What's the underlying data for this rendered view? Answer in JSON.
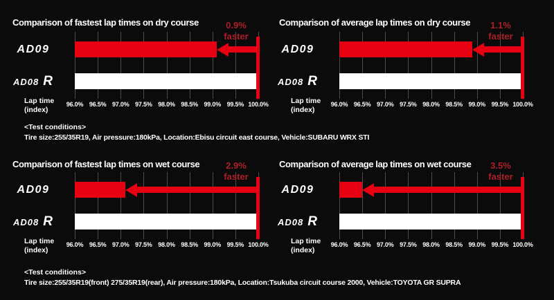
{
  "colors": {
    "background": "#0b0b0b",
    "red": "#e60012",
    "dark-red": "#ae1f27",
    "white": "#ffffff",
    "grid": "#4d4d4d"
  },
  "series": {
    "ad09": "AD09",
    "ad08": "AD08",
    "ad08_suffix": "R"
  },
  "axis_label": {
    "line1": "Lap time",
    "line2": "(index)"
  },
  "chart_data": [
    {
      "type": "bar",
      "orientation": "horizontal",
      "title": "Comparison of fastest lap times on dry course",
      "categories": [
        "AD09",
        "AD08 R"
      ],
      "values": [
        99.1,
        100.0
      ],
      "xlabel": "Lap time (index)",
      "xlim": [
        96.0,
        100.0
      ],
      "xticks": [
        "96.0%",
        "96.5%",
        "97.0%",
        "97.5%",
        "98.0%",
        "98.5%",
        "99.0%",
        "99.5%",
        "100.0%"
      ],
      "annotation": {
        "pct": "0.9%",
        "word": "faster"
      },
      "grid": true,
      "legend": false
    },
    {
      "type": "bar",
      "orientation": "horizontal",
      "title": "Comparison of average lap times on dry course",
      "categories": [
        "AD09",
        "AD08 R"
      ],
      "values": [
        98.9,
        100.0
      ],
      "xlabel": "Lap time (index)",
      "xlim": [
        96.0,
        100.0
      ],
      "xticks": [
        "96.0%",
        "96.5%",
        "97.0%",
        "97.5%",
        "98.0%",
        "98.5%",
        "99.0%",
        "99.5%",
        "100.0%"
      ],
      "annotation": {
        "pct": "1.1%",
        "word": "faster"
      },
      "grid": true,
      "legend": false
    },
    {
      "type": "bar",
      "orientation": "horizontal",
      "title": "Comparison of fastest lap times on wet course",
      "categories": [
        "AD09",
        "AD08 R"
      ],
      "values": [
        97.1,
        100.0
      ],
      "xlabel": "Lap time (index)",
      "xlim": [
        96.0,
        100.0
      ],
      "xticks": [
        "96.0%",
        "96.5%",
        "97.0%",
        "97.5%",
        "98.0%",
        "98.5%",
        "99.0%",
        "99.5%",
        "100.0%"
      ],
      "annotation": {
        "pct": "2.9%",
        "word": "faster"
      },
      "grid": true,
      "legend": false
    },
    {
      "type": "bar",
      "orientation": "horizontal",
      "title": "Comparison of average lap times on wet course",
      "categories": [
        "AD09",
        "AD08 R"
      ],
      "values": [
        96.5,
        100.0
      ],
      "xlabel": "Lap time (index)",
      "xlim": [
        96.0,
        100.0
      ],
      "xticks": [
        "96.0%",
        "96.5%",
        "97.0%",
        "97.5%",
        "98.0%",
        "98.5%",
        "99.0%",
        "99.5%",
        "100.0%"
      ],
      "annotation": {
        "pct": "3.5%",
        "word": "faster"
      },
      "grid": true,
      "legend": false
    }
  ],
  "conditions": [
    {
      "heading": "<Test conditions>",
      "text": "Tire size:255/35R19, Air pressure:180kPa, Location:Ebisu circuit east course, Vehicle:SUBARU WRX STI"
    },
    {
      "heading": "<Test conditions>",
      "text": "Tire size:255/35R19(front) 275/35R19(rear), Air pressure:180kPa, Location:Tsukuba circuit course 2000, Vehicle:TOYOTA GR SUPRA"
    }
  ]
}
